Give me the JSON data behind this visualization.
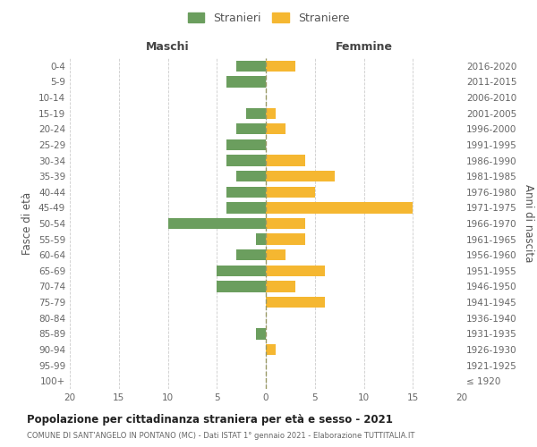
{
  "age_groups": [
    "100+",
    "95-99",
    "90-94",
    "85-89",
    "80-84",
    "75-79",
    "70-74",
    "65-69",
    "60-64",
    "55-59",
    "50-54",
    "45-49",
    "40-44",
    "35-39",
    "30-34",
    "25-29",
    "20-24",
    "15-19",
    "10-14",
    "5-9",
    "0-4"
  ],
  "birth_years": [
    "≤ 1920",
    "1921-1925",
    "1926-1930",
    "1931-1935",
    "1936-1940",
    "1941-1945",
    "1946-1950",
    "1951-1955",
    "1956-1960",
    "1961-1965",
    "1966-1970",
    "1971-1975",
    "1976-1980",
    "1981-1985",
    "1986-1990",
    "1991-1995",
    "1996-2000",
    "2001-2005",
    "2006-2010",
    "2011-2015",
    "2016-2020"
  ],
  "maschi": [
    0,
    0,
    0,
    1,
    0,
    0,
    5,
    5,
    3,
    1,
    10,
    4,
    4,
    3,
    4,
    4,
    3,
    2,
    0,
    4,
    3
  ],
  "femmine": [
    0,
    0,
    1,
    0,
    0,
    6,
    3,
    6,
    2,
    4,
    4,
    15,
    5,
    7,
    4,
    0,
    2,
    1,
    0,
    0,
    3
  ],
  "color_maschi": "#6b9e5e",
  "color_femmine": "#f5b731",
  "title": "Popolazione per cittadinanza straniera per età e sesso - 2021",
  "subtitle": "COMUNE DI SANT'ANGELO IN PONTANO (MC) - Dati ISTAT 1° gennaio 2021 - Elaborazione TUTTITALIA.IT",
  "ylabel_left": "Fasce di età",
  "ylabel_right": "Anni di nascita",
  "xlabel_left": "Maschi",
  "xlabel_right": "Femmine",
  "legend_maschi": "Stranieri",
  "legend_femmine": "Straniere",
  "xlim": 20,
  "background_color": "#ffffff",
  "grid_color": "#cccccc"
}
